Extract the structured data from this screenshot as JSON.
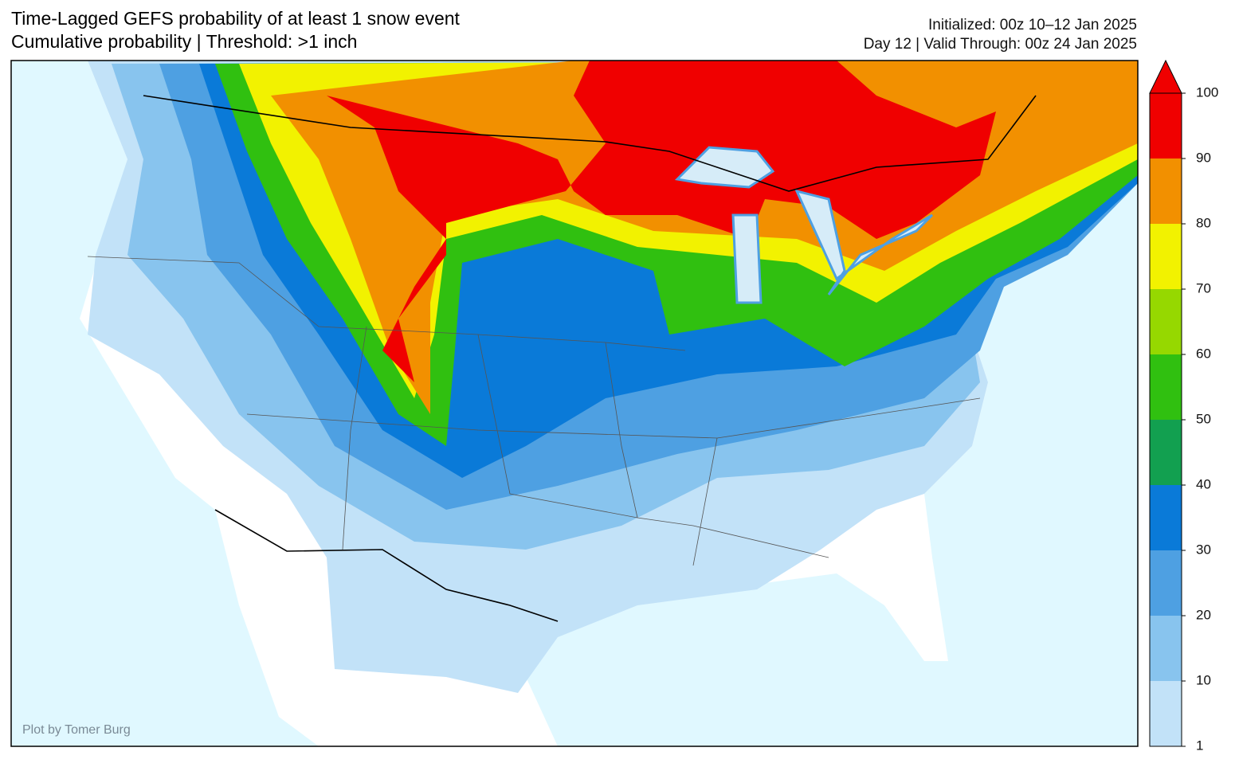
{
  "header": {
    "title": [
      "Time-Lagged GEFS probability of at least 1 snow event",
      "Cumulative probability | Threshold: >1 inch"
    ],
    "info": [
      "Initialized: 00z 10–12 Jan 2025",
      "Day 12 | Valid Through: 00z 24 Jan 2025"
    ]
  },
  "credit": "Plot by Tomer Burg",
  "colorbar": {
    "levels": [
      1,
      10,
      20,
      30,
      40,
      50,
      60,
      70,
      80,
      90,
      100
    ],
    "colors": [
      "#c2e2f8",
      "#88c4ee",
      "#4ea0e2",
      "#0a7ad8",
      "#12a050",
      "#30c010",
      "#96d800",
      "#f2f200",
      "#f29000",
      "#f00000"
    ]
  }
}
